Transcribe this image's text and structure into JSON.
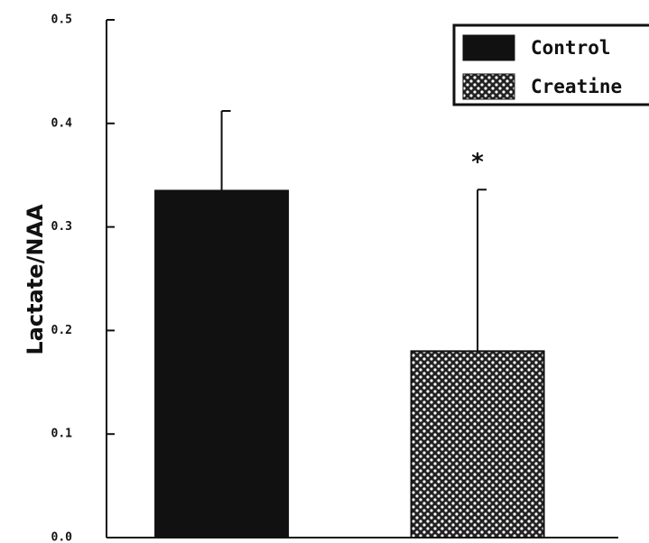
{
  "chart_data": {
    "type": "bar",
    "y_label": "Lactate/NAA",
    "categories": [
      null,
      null
    ],
    "series": [
      {
        "name": "Control",
        "color": "#111111",
        "values": [
          0.335,
          null
        ],
        "errors": [
          0.077,
          null
        ]
      },
      {
        "name": "Creatine",
        "color": "#222222",
        "values": [
          null,
          0.18
        ],
        "errors": [
          null,
          0.156
        ]
      }
    ],
    "annotation": "*",
    "ylim": [
      0,
      0.5
    ],
    "yticks": [
      {
        "value": 0,
        "label": "0.0"
      },
      0.1,
      0.2,
      0.3,
      0.4,
      0.5
    ],
    "legend": "upper right"
  }
}
